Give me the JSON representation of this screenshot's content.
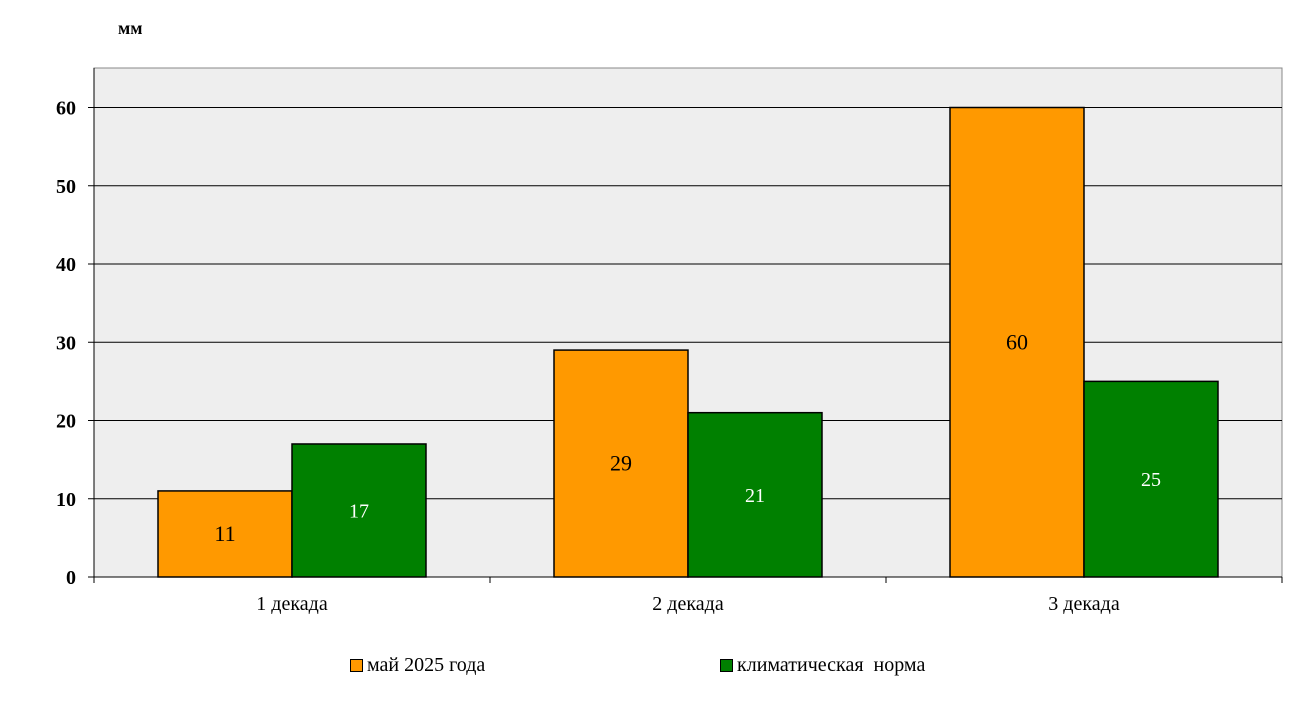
{
  "chart_data": {
    "type": "bar",
    "title": "",
    "ylabel": "мм",
    "xlabel": "",
    "categories": [
      "1 декада",
      "2 декада",
      "3 декада"
    ],
    "series": [
      {
        "name": "май 2025 года",
        "values": [
          11,
          29,
          60
        ],
        "color": "#FF9900",
        "label_color": "#000000"
      },
      {
        "name": "климатическая  норма",
        "values": [
          17,
          21,
          25
        ],
        "color": "#008000",
        "label_color": "#FFFFFF"
      }
    ],
    "ylim": [
      0,
      65
    ],
    "yticks": [
      0,
      10,
      20,
      30,
      40,
      50,
      60
    ],
    "grid": true,
    "legend_position": "bottom",
    "plot_background": "#EEEEEE"
  }
}
